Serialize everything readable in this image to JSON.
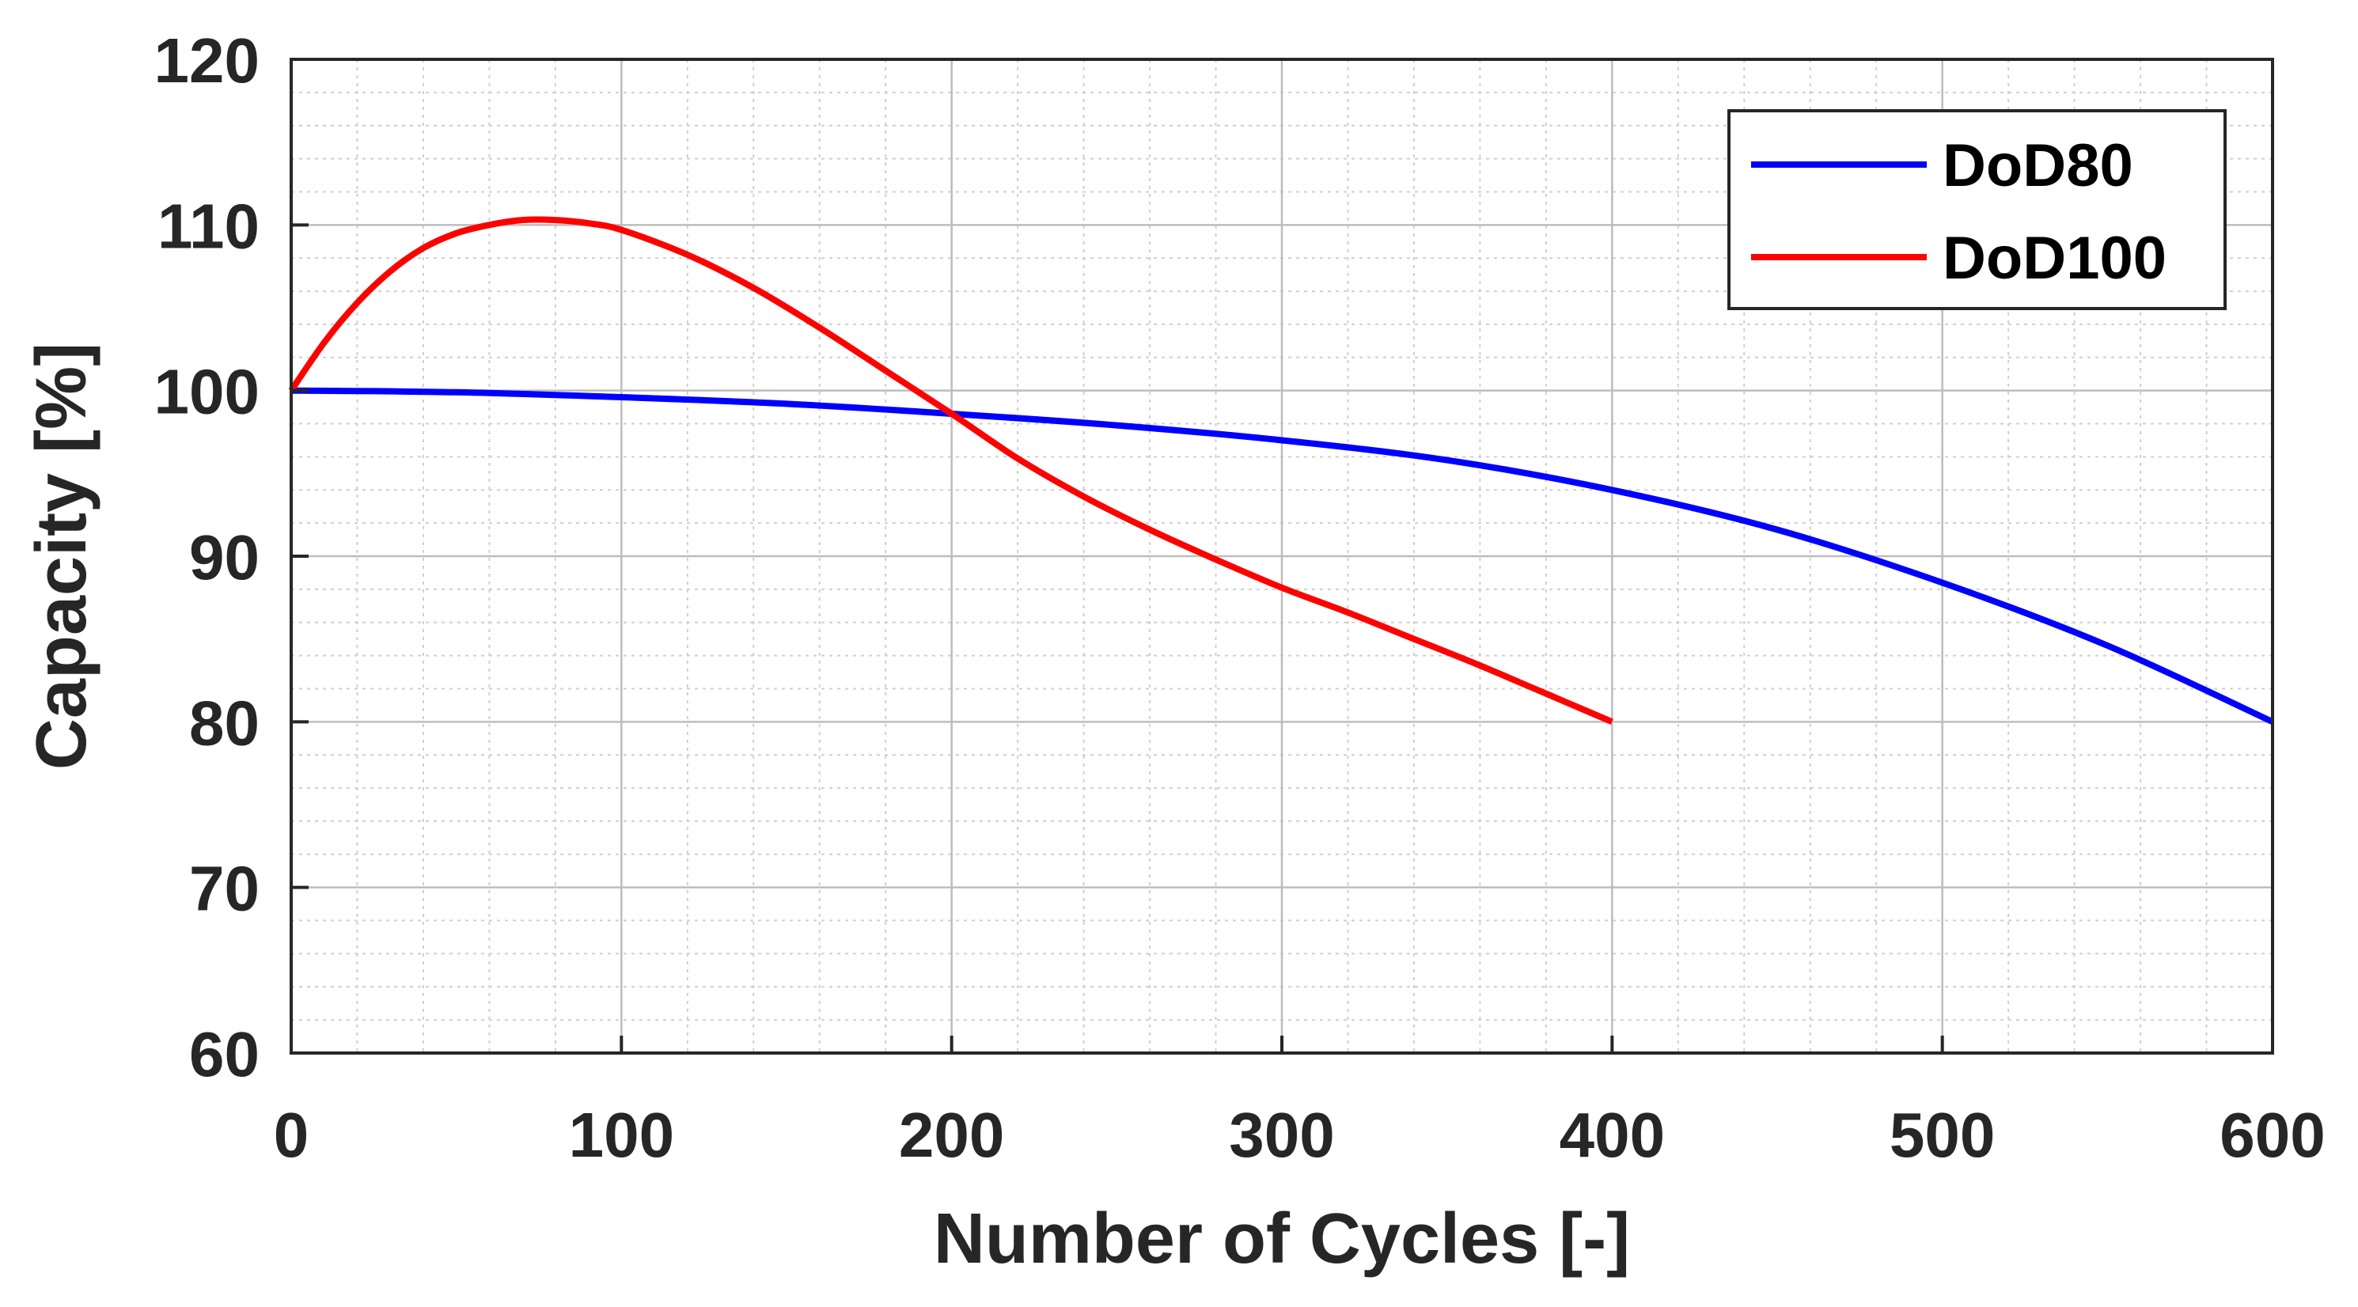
{
  "chart_data": {
    "type": "line",
    "title": "",
    "xlabel": "Number of Cycles [-]",
    "ylabel": "Capacity [%]",
    "xlim": [
      0,
      600
    ],
    "ylim": [
      60,
      120
    ],
    "xticks": [
      0,
      100,
      200,
      300,
      400,
      500,
      600
    ],
    "yticks": [
      60,
      70,
      80,
      90,
      100,
      110,
      120
    ],
    "xtick_labels": [
      "0",
      "100",
      "200",
      "300",
      "400",
      "500",
      "600"
    ],
    "ytick_labels": [
      "60",
      "70",
      "80",
      "90",
      "100",
      "110",
      "120"
    ],
    "grid": true,
    "minor_grid": true,
    "legend_position": "top-right",
    "series": [
      {
        "name": "DoD80",
        "color": "#0000ff",
        "x": [
          0,
          50,
          100,
          150,
          200,
          250,
          300,
          350,
          400,
          450,
          500,
          550,
          600
        ],
        "y": [
          100.0,
          99.9,
          99.6,
          99.2,
          98.6,
          97.9,
          97.0,
          95.8,
          94.0,
          91.6,
          88.4,
          84.6,
          80.0
        ]
      },
      {
        "name": "DoD100",
        "color": "#ff0000",
        "x": [
          0,
          10,
          20,
          30,
          40,
          50,
          60,
          70,
          80,
          90,
          100,
          120,
          140,
          160,
          180,
          200,
          220,
          240,
          260,
          280,
          300,
          320,
          340,
          360,
          380,
          400
        ],
        "y": [
          100.0,
          102.9,
          105.3,
          107.2,
          108.6,
          109.5,
          110.0,
          110.3,
          110.3,
          110.1,
          109.7,
          108.2,
          106.2,
          103.8,
          101.2,
          98.6,
          95.9,
          93.6,
          91.6,
          89.8,
          88.1,
          86.6,
          85.0,
          83.4,
          81.7,
          80.0
        ]
      }
    ]
  }
}
